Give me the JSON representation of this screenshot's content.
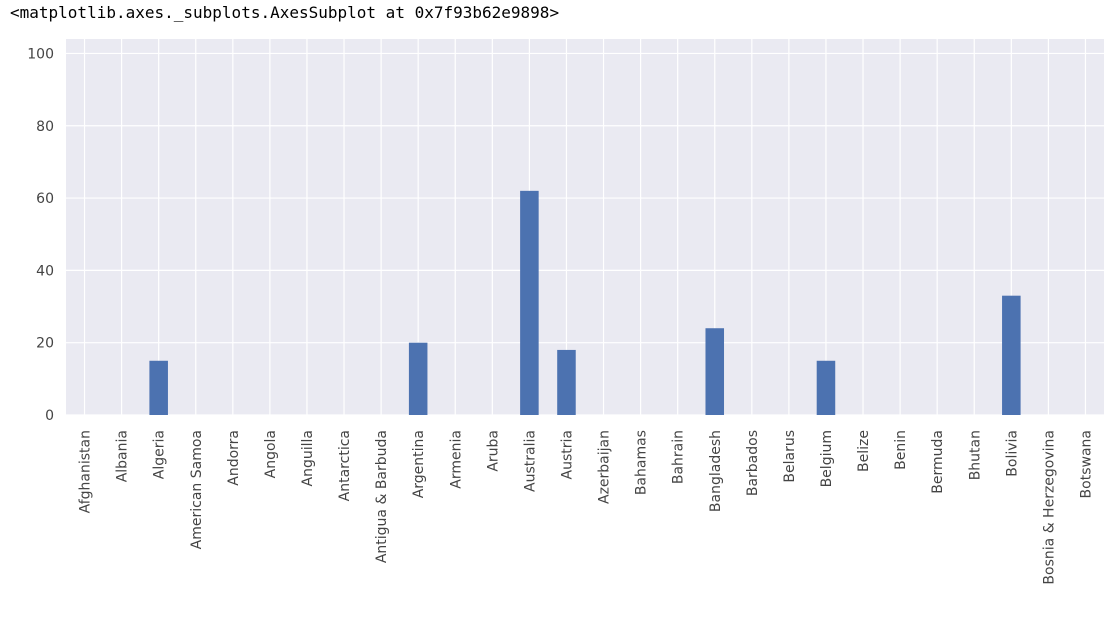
{
  "output_text": "<matplotlib.axes._subplots.AxesSubplot at 0x7f93b62e9898>",
  "colors": {
    "background": "#eaeaf2",
    "grid": "#ffffff",
    "bar": "#4c72b0",
    "text": "#444444"
  },
  "chart_data": {
    "type": "bar",
    "title": "",
    "xlabel": "",
    "ylabel": "",
    "grid": true,
    "ylim": [
      0,
      104
    ],
    "yticks": [
      0,
      20,
      40,
      60,
      80,
      100
    ],
    "categories": [
      "Afghanistan",
      "Albania",
      "Algeria",
      "American Samoa",
      "Andorra",
      "Angola",
      "Anguilla",
      "Antarctica",
      "Antigua & Barbuda",
      "Argentina",
      "Armenia",
      "Aruba",
      "Australia",
      "Austria",
      "Azerbaijan",
      "Bahamas",
      "Bahrain",
      "Bangladesh",
      "Barbados",
      "Belarus",
      "Belgium",
      "Belize",
      "Benin",
      "Bermuda",
      "Bhutan",
      "Bolivia",
      "Bosnia & Herzegovina",
      "Botswana"
    ],
    "values": [
      0,
      0,
      15,
      0,
      0,
      0,
      0,
      0,
      0,
      20,
      0,
      0,
      62,
      18,
      0,
      0,
      0,
      24,
      0,
      0,
      15,
      0,
      0,
      0,
      0,
      33,
      0,
      0
    ]
  }
}
